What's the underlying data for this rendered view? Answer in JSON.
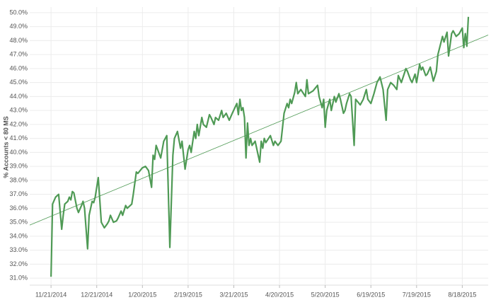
{
  "chart_data": {
    "type": "line",
    "y_label": "% Accounts < 80 MS",
    "x": [
      "2014-11-21",
      "2014-11-22",
      "2014-11-24",
      "2014-11-26",
      "2014-11-28",
      "2014-11-29",
      "2014-11-30",
      "2014-12-02",
      "2014-12-03",
      "2014-12-04",
      "2014-12-05",
      "2014-12-06",
      "2014-12-08",
      "2014-12-09",
      "2014-12-11",
      "2014-12-12",
      "2014-12-13",
      "2014-12-15",
      "2014-12-16",
      "2014-12-18",
      "2014-12-19",
      "2014-12-20",
      "2014-12-22",
      "2014-12-24",
      "2014-12-26",
      "2014-12-28",
      "2014-12-29",
      "2014-12-30",
      "2015-01-01",
      "2015-01-03",
      "2015-01-04",
      "2015-01-06",
      "2015-01-07",
      "2015-01-09",
      "2015-01-10",
      "2015-01-13",
      "2015-01-14",
      "2015-01-16",
      "2015-01-17",
      "2015-01-20",
      "2015-01-22",
      "2015-01-24",
      "2015-01-26",
      "2015-01-27",
      "2015-01-28",
      "2015-01-29",
      "2015-02-01",
      "2015-02-03",
      "2015-02-05",
      "2015-02-07",
      "2015-02-09",
      "2015-02-10",
      "2015-02-12",
      "2015-02-14",
      "2015-02-15",
      "2015-02-17",
      "2015-02-19",
      "2015-02-20",
      "2015-02-21",
      "2015-02-23",
      "2015-02-24",
      "2015-02-25",
      "2015-02-26",
      "2015-02-28",
      "2015-03-01",
      "2015-03-03",
      "2015-03-05",
      "2015-03-06",
      "2015-03-08",
      "2015-03-09",
      "2015-03-11",
      "2015-03-13",
      "2015-03-14",
      "2015-03-16",
      "2015-03-18",
      "2015-03-20",
      "2015-03-23",
      "2015-03-24",
      "2015-03-25",
      "2015-03-26",
      "2015-03-27",
      "2015-03-28",
      "2015-03-29",
      "2015-03-30",
      "2015-03-31",
      "2015-04-01",
      "2015-04-02",
      "2015-04-04",
      "2015-04-07",
      "2015-04-08",
      "2015-04-09",
      "2015-04-10",
      "2015-04-11",
      "2015-04-14",
      "2015-04-16",
      "2015-04-17",
      "2015-04-19",
      "2015-04-21",
      "2015-04-23",
      "2015-04-25",
      "2015-04-26",
      "2015-04-27",
      "2015-04-28",
      "2015-04-30",
      "2015-05-01",
      "2015-05-02",
      "2015-05-04",
      "2015-05-07",
      "2015-05-08",
      "2015-05-09",
      "2015-05-12",
      "2015-05-15",
      "2015-05-16",
      "2015-05-17",
      "2015-05-18",
      "2015-05-19",
      "2015-05-20",
      "2015-05-21",
      "2015-05-23",
      "2015-05-24",
      "2015-05-26",
      "2015-05-27",
      "2015-05-29",
      "2015-05-30",
      "2015-06-01",
      "2015-06-02",
      "2015-06-03",
      "2015-06-05",
      "2015-06-06",
      "2015-06-08",
      "2015-06-09",
      "2015-06-12",
      "2015-06-14",
      "2015-06-16",
      "2015-06-17",
      "2015-06-19",
      "2015-06-21",
      "2015-06-23",
      "2015-06-25",
      "2015-06-27",
      "2015-06-29",
      "2015-06-30",
      "2015-07-02",
      "2015-07-04",
      "2015-07-06",
      "2015-07-07",
      "2015-07-09",
      "2015-07-12",
      "2015-07-13",
      "2015-07-15",
      "2015-07-16",
      "2015-07-18",
      "2015-07-19",
      "2015-07-21",
      "2015-07-22",
      "2015-07-23",
      "2015-07-25",
      "2015-07-26",
      "2015-07-28",
      "2015-07-30",
      "2015-08-01",
      "2015-08-02",
      "2015-08-05",
      "2015-08-06",
      "2015-08-08",
      "2015-08-09",
      "2015-08-11",
      "2015-08-12",
      "2015-08-14",
      "2015-08-16",
      "2015-08-18",
      "2015-08-19",
      "2015-08-20",
      "2015-08-21",
      "2015-08-22"
    ],
    "series": [
      {
        "color": "#4f9a55",
        "values": [
          31.1,
          36.3,
          36.8,
          37.0,
          34.5,
          35.5,
          36.3,
          36.5,
          36.8,
          36.6,
          37.2,
          37.1,
          36.0,
          35.7,
          36.2,
          36.5,
          36.0,
          33.1,
          35.5,
          36.5,
          36.4,
          36.8,
          38.2,
          35.0,
          34.6,
          34.9,
          35.1,
          35.5,
          35.0,
          35.1,
          35.3,
          35.8,
          35.5,
          36.2,
          36.0,
          36.3,
          37.0,
          38.6,
          38.5,
          38.9,
          39.0,
          38.7,
          37.5,
          39.8,
          39.5,
          40.5,
          39.6,
          40.8,
          41.2,
          33.2,
          39.8,
          41.0,
          41.5,
          40.3,
          40.8,
          38.8,
          40.2,
          40.5,
          40.0,
          41.5,
          41.0,
          42.0,
          41.2,
          42.5,
          42.0,
          41.8,
          42.7,
          42.5,
          42.0,
          42.5,
          42.3,
          43.0,
          42.5,
          42.8,
          42.3,
          42.8,
          43.5,
          42.7,
          43.8,
          43.0,
          43.2,
          42.5,
          39.6,
          42.1,
          40.5,
          41.0,
          40.5,
          40.8,
          39.3,
          40.8,
          40.3,
          41.0,
          40.7,
          41.2,
          40.5,
          40.8,
          40.5,
          40.8,
          42.8,
          43.5,
          43.2,
          43.8,
          43.5,
          44.3,
          45.0,
          44.2,
          44.5,
          44.0,
          45.2,
          44.2,
          44.4,
          44.8,
          44.0,
          43.6,
          43.2,
          43.8,
          41.8,
          43.0,
          43.8,
          43.0,
          44.0,
          43.6,
          44.2,
          43.8,
          42.8,
          43.0,
          43.5,
          44.2,
          44.0,
          40.5,
          43.8,
          43.4,
          43.8,
          44.5,
          43.8,
          43.5,
          44.2,
          45.0,
          45.4,
          44.5,
          42.3,
          44.5,
          45.0,
          44.8,
          44.5,
          45.5,
          45.0,
          46.0,
          45.8,
          45.2,
          45.0,
          45.6,
          45.0,
          46.3,
          45.9,
          46.1,
          45.5,
          45.6,
          46.1,
          45.1,
          45.8,
          47.0,
          48.3,
          47.9,
          48.6,
          46.9,
          48.5,
          48.7,
          48.3,
          48.5,
          48.9,
          47.5,
          48.5,
          47.6,
          49.7
        ]
      }
    ],
    "trend": {
      "x": [
        "2014-11-07",
        "2015-09-04"
      ],
      "values": [
        34.8,
        48.4
      ],
      "color": "#4f9a55"
    },
    "xlim": [
      "2014-11-07",
      "2015-09-04"
    ],
    "xticks": [
      {
        "value": "2014-11-21",
        "label": "11/21/2014"
      },
      {
        "value": "2014-12-21",
        "label": "12/21/2014"
      },
      {
        "value": "2015-01-20",
        "label": "1/20/2015"
      },
      {
        "value": "2015-02-19",
        "label": "2/19/2015"
      },
      {
        "value": "2015-03-21",
        "label": "3/21/2015"
      },
      {
        "value": "2015-04-20",
        "label": "4/20/2015"
      },
      {
        "value": "2015-05-20",
        "label": "5/20/2015"
      },
      {
        "value": "2015-06-19",
        "label": "6/19/2015"
      },
      {
        "value": "2015-07-19",
        "label": "7/19/2015"
      },
      {
        "value": "2015-08-18",
        "label": "8/18/2015"
      }
    ],
    "ylim": [
      30.5,
      50.4
    ],
    "yticks": [
      {
        "value": 31,
        "label": "31.0%"
      },
      {
        "value": 32,
        "label": "32.0%"
      },
      {
        "value": 33,
        "label": "33.0%"
      },
      {
        "value": 34,
        "label": "34.0%"
      },
      {
        "value": 35,
        "label": "35.0%"
      },
      {
        "value": 36,
        "label": "36.0%"
      },
      {
        "value": 37,
        "label": "37.0%"
      },
      {
        "value": 38,
        "label": "38.0%"
      },
      {
        "value": 39,
        "label": "39.0%"
      },
      {
        "value": 40,
        "label": "40.0%"
      },
      {
        "value": 41,
        "label": "41.0%"
      },
      {
        "value": 42,
        "label": "42.0%"
      },
      {
        "value": 43,
        "label": "43.0%"
      },
      {
        "value": 44,
        "label": "44.0%"
      },
      {
        "value": 45,
        "label": "45.0%"
      },
      {
        "value": 46,
        "label": "46.0%"
      },
      {
        "value": 47,
        "label": "47.0%"
      },
      {
        "value": 48,
        "label": "48.0%"
      },
      {
        "value": 49,
        "label": "49.0%"
      },
      {
        "value": 50,
        "label": "50.0%"
      }
    ],
    "grid": true
  }
}
